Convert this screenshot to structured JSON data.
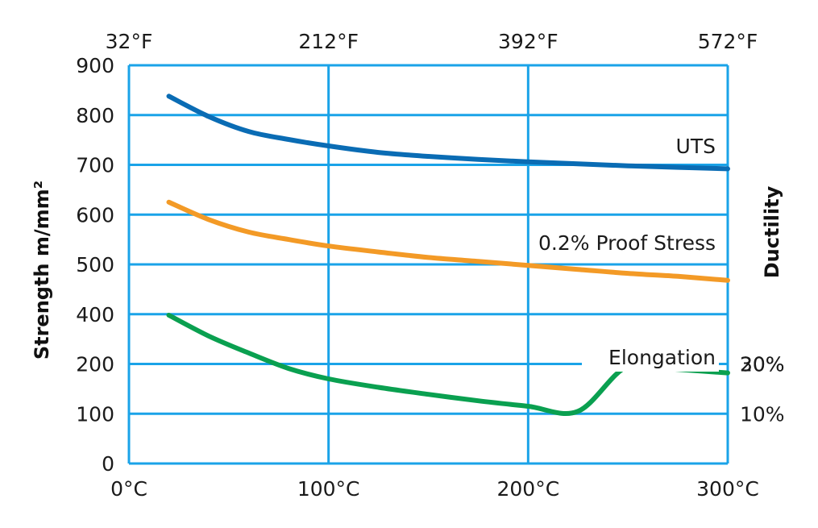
{
  "chart_data": {
    "type": "line",
    "xlabel": "",
    "ylabel": "Strength m/mm²",
    "y2label": "Ductility",
    "x": [
      20,
      40,
      60,
      80,
      100,
      125,
      150,
      175,
      200,
      225,
      250,
      275,
      300
    ],
    "xlim": [
      0,
      300
    ],
    "x_ticks": [
      0,
      100,
      200,
      300
    ],
    "x_tick_labels": [
      "0°C",
      "100°C",
      "200°C",
      "300°C"
    ],
    "x2_ticks": [
      0,
      100,
      200,
      300
    ],
    "x2_tick_labels": [
      "32°F",
      "212°F",
      "392°F",
      "572°F"
    ],
    "y_tick_labels": [
      "0",
      "100",
      "200",
      "400",
      "500",
      "600",
      "700",
      "800",
      "900"
    ],
    "y_tick_values": [
      0,
      100,
      200,
      400,
      500,
      600,
      700,
      800,
      900
    ],
    "y2_tick_labels": [
      "10%",
      "20%",
      "30%"
    ],
    "y2_tick_values": [
      100,
      200,
      300
    ],
    "y_axis_note": "Gridlines are evenly spaced; tick labels skip 300 (the 4th gridline is labelled 400)",
    "grid": true,
    "series": [
      {
        "name": "UTS",
        "color": "#0a6cb4",
        "values": [
          838,
          797,
          767,
          751,
          738,
          725,
          717,
          711,
          706,
          702,
          698,
          695,
          692
        ]
      },
      {
        "name": "0.2% Proof Stress",
        "color": "#f39a26",
        "values": [
          625,
          590,
          565,
          550,
          537,
          525,
          514,
          506,
          498,
          490,
          482,
          476,
          468
        ]
      },
      {
        "name": "Elongation",
        "color": "#0aa050",
        "values": [
          398,
          356,
          322,
          291,
          270,
          253,
          239,
          226,
          215,
          205,
          196,
          189,
          182
        ]
      }
    ]
  },
  "colors": {
    "grid": "#1aa3e8",
    "text": "#1a1a1a"
  }
}
